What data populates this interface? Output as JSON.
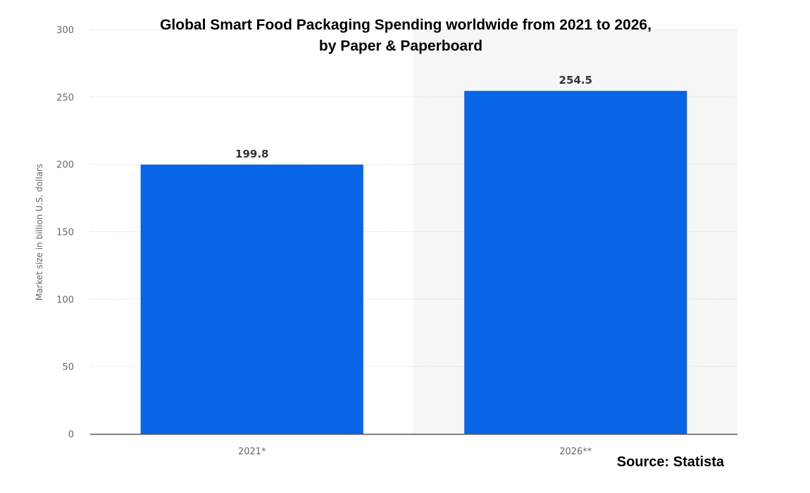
{
  "chart_data": {
    "type": "bar",
    "title": "Global Smart Food Packaging Spending worldwide from 2021 to 2026,",
    "subtitle": "by Paper & Paperboard",
    "ylabel": "Market size in billion U.S. dollars",
    "xlabel": "",
    "categories": [
      "2021*",
      "2026**"
    ],
    "values": [
      199.8,
      254.5
    ],
    "value_labels": [
      "199.8",
      "254.5"
    ],
    "yticks": [
      0,
      50,
      100,
      150,
      200,
      250,
      300
    ],
    "ytick_labels": [
      "0",
      "50",
      "100",
      "150",
      "200",
      "250",
      "300"
    ],
    "ylim": [
      0,
      300
    ],
    "grid": true,
    "highlighted_category": "2026**",
    "colors": {
      "bar": "#0866e6",
      "highlight_band": "#f6f6f6",
      "grid": "#dddddd",
      "axis": "#555555"
    },
    "source": "Source: Statista"
  }
}
